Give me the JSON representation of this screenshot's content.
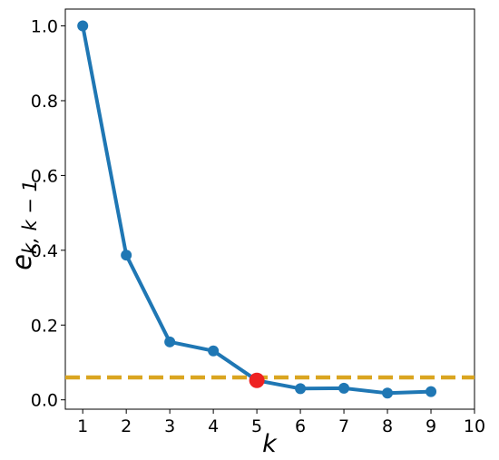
{
  "chart_data": {
    "type": "line",
    "xlabel": "k",
    "ylabel_main": "e",
    "ylabel_sub": "k, k − 1",
    "xlim": [
      0.6,
      10
    ],
    "ylim": [
      -0.025,
      1.045
    ],
    "xticks": [
      1,
      2,
      3,
      4,
      5,
      6,
      7,
      8,
      9,
      10
    ],
    "yticks": [
      0.0,
      0.2,
      0.4,
      0.6,
      0.8,
      1.0
    ],
    "ytick_labels": [
      "0.0",
      "0.2",
      "0.4",
      "0.6",
      "0.8",
      "1.0"
    ],
    "grid": false,
    "series": [
      {
        "x": [
          1,
          2,
          3,
          4,
          5,
          6,
          7,
          8,
          9
        ],
        "y": [
          1.0,
          0.387,
          0.155,
          0.131,
          0.052,
          0.03,
          0.031,
          0.018,
          0.022
        ],
        "color": "#1f77b4"
      }
    ],
    "threshold": {
      "y": 0.06,
      "color": "#DAA520",
      "style": "dashed"
    },
    "highlight": {
      "x": 5,
      "y": 0.052,
      "color": "#ee2222"
    }
  }
}
